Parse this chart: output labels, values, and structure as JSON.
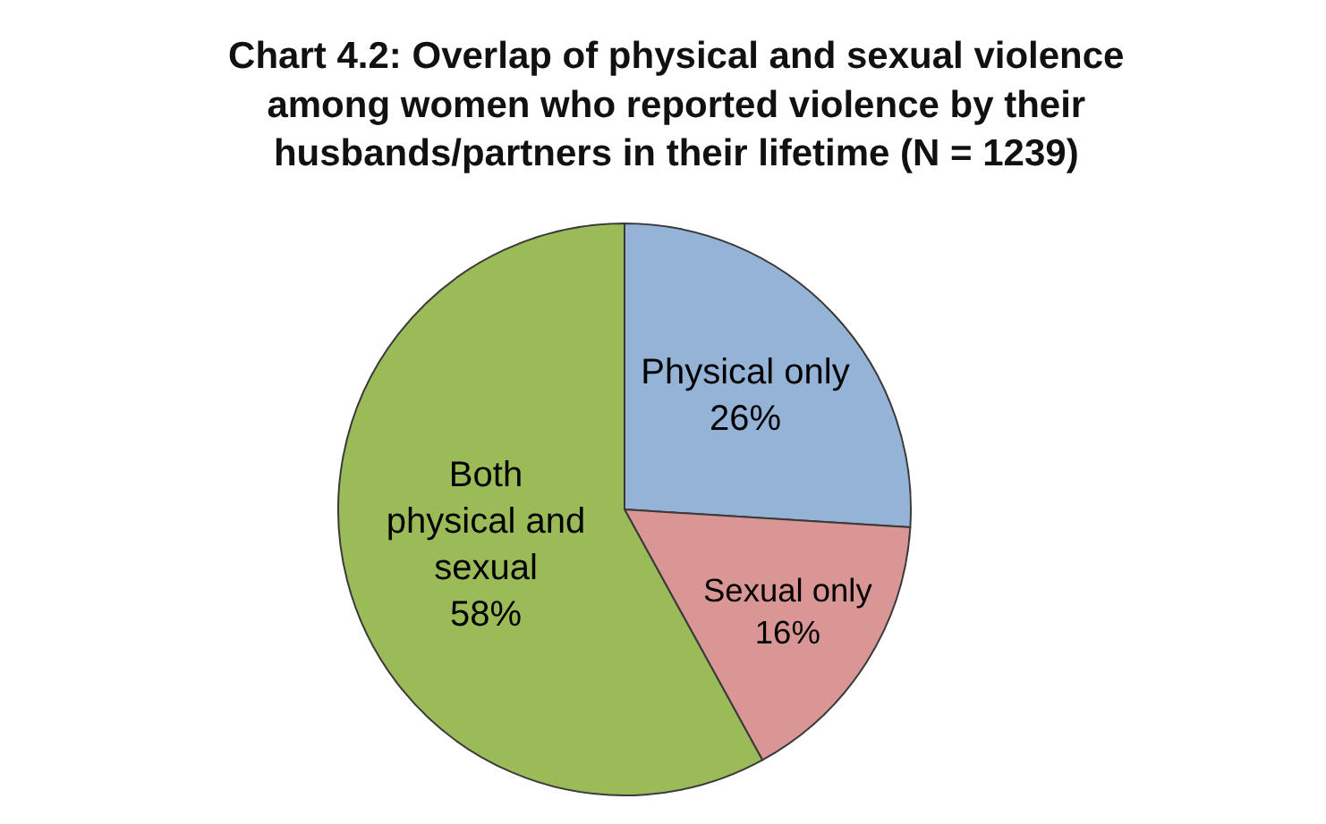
{
  "chart_data": {
    "type": "pie",
    "title": "Chart 4.2: Overlap of physical and sexual violence among women who reported violence by their husbands/partners in their lifetime (N = 1239)",
    "categories": [
      "Physical only",
      "Sexual only",
      "Both physical and sexual"
    ],
    "values": [
      26,
      16,
      58
    ],
    "colors": [
      "#95b3d7",
      "#d99694",
      "#9bbb59"
    ],
    "value_labels": [
      "26%",
      "16%",
      "58%"
    ]
  }
}
